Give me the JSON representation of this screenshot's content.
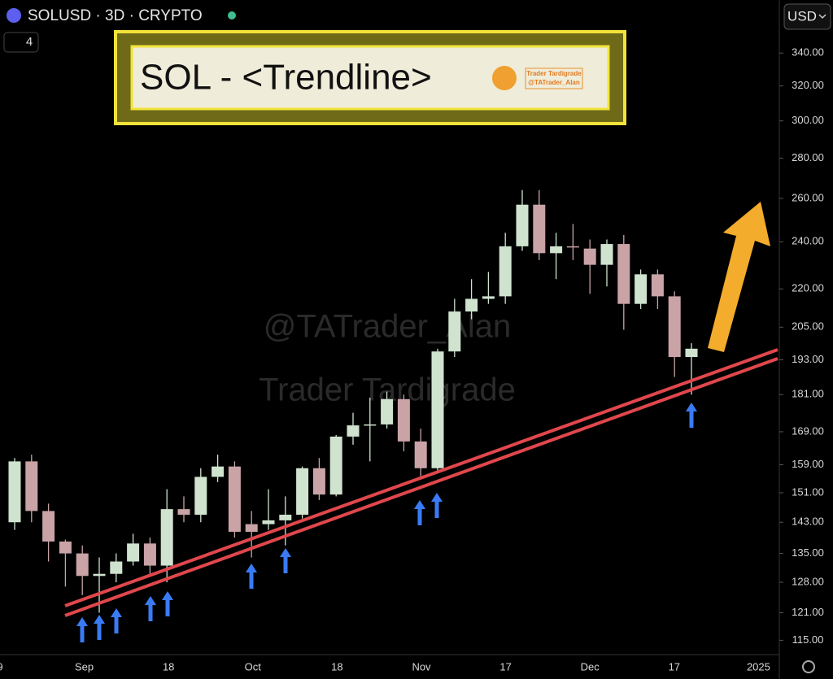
{
  "chart_data": {
    "type": "candlestick",
    "header": "SOLUSD · 3D · CRYPTO",
    "interval_badge": "4",
    "currency": "USD",
    "title": "SOL - <Trendline>",
    "logo_name": "Trader Tardigrade",
    "logo_handle": "@TATrader_Alan",
    "watermark": [
      "@TATrader_Alan",
      "Trader Tardigrade"
    ],
    "log_scale": true,
    "up_color": "#cfe3cf",
    "down_color": "#c9a3a6",
    "x_labels": [
      "9",
      "Sep",
      "18",
      "Oct",
      "18",
      "Nov",
      "17",
      "Dec",
      "17",
      "2025"
    ],
    "ylim": [
      112,
      375
    ],
    "yticks": [
      {
        "value": 115,
        "label": "115.00"
      },
      {
        "value": 121,
        "label": "121.00"
      },
      {
        "value": 128,
        "label": "128.00"
      },
      {
        "value": 135,
        "label": "135.00"
      },
      {
        "value": 143,
        "label": "143.00"
      },
      {
        "value": 151,
        "label": "151.00"
      },
      {
        "value": 159,
        "label": "159.00"
      },
      {
        "value": 169,
        "label": "169.00"
      },
      {
        "value": 181,
        "label": "181.00"
      },
      {
        "value": 193,
        "label": "193.00"
      },
      {
        "value": 205,
        "label": "205.00"
      },
      {
        "value": 220,
        "label": "220.00"
      },
      {
        "value": 240,
        "label": "240.00"
      },
      {
        "value": 260,
        "label": "260.00"
      },
      {
        "value": 280,
        "label": "280.00"
      },
      {
        "value": 300,
        "label": "300.00"
      },
      {
        "value": 320,
        "label": "320.00"
      },
      {
        "value": 340,
        "label": "340.00"
      }
    ],
    "open": [
      143,
      160,
      146,
      138,
      135,
      129.5,
      130,
      133,
      137.5,
      132,
      146.5,
      145,
      155.5,
      158.5,
      142.5,
      142.5,
      143.5,
      145,
      158,
      150.5,
      167.5,
      171,
      171.3,
      179.5,
      166,
      158,
      196,
      211,
      216,
      217,
      238,
      257,
      235,
      238,
      237,
      230,
      239,
      214,
      226,
      217,
      194
    ],
    "high": [
      161,
      162,
      148,
      138.5,
      137,
      134,
      135,
      140,
      139,
      152,
      150,
      158,
      162,
      160,
      146,
      152,
      150,
      158.5,
      161,
      168,
      175,
      180,
      182,
      181,
      170,
      197,
      216,
      224,
      227,
      244,
      264,
      264,
      244,
      248,
      241,
      241,
      243,
      228,
      228,
      219,
      199
    ],
    "low": [
      141,
      143,
      133,
      127,
      125,
      121,
      128,
      132,
      130,
      128,
      143,
      143,
      154,
      139,
      134,
      141,
      137,
      144,
      149,
      150,
      165,
      160,
      170,
      163,
      155,
      157,
      194,
      208,
      214,
      214,
      236,
      232,
      224,
      232,
      218,
      221,
      204,
      212,
      212,
      187,
      181
    ],
    "close": [
      160,
      146,
      138,
      135,
      129.5,
      130,
      133,
      137.5,
      132,
      146.5,
      145,
      155.5,
      158.5,
      140.5,
      140.5,
      143.5,
      145,
      158,
      150.5,
      167.5,
      171,
      171.3,
      179.5,
      166,
      158,
      196,
      211,
      216,
      217,
      238,
      257,
      235,
      238,
      237.5,
      230,
      239,
      214,
      226,
      217,
      194,
      197
    ]
  }
}
